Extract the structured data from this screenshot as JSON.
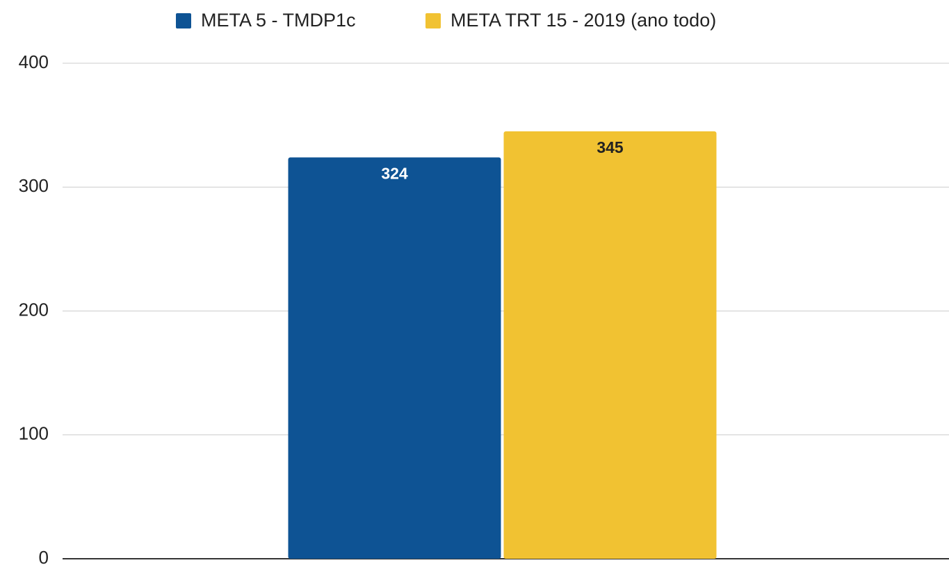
{
  "chart_data": {
    "type": "bar",
    "categories": [
      null
    ],
    "series": [
      {
        "name": "META 5 - TMDP1c",
        "color": "#0e5394",
        "values": [
          324
        ]
      },
      {
        "name": "META TRT 15 - 2019  (ano todo)",
        "color": "#f1c232",
        "values": [
          345
        ]
      }
    ],
    "ylim": [
      0,
      400
    ],
    "yticks": [
      0,
      100,
      200,
      300,
      400
    ],
    "grid": true,
    "legend": "top"
  }
}
